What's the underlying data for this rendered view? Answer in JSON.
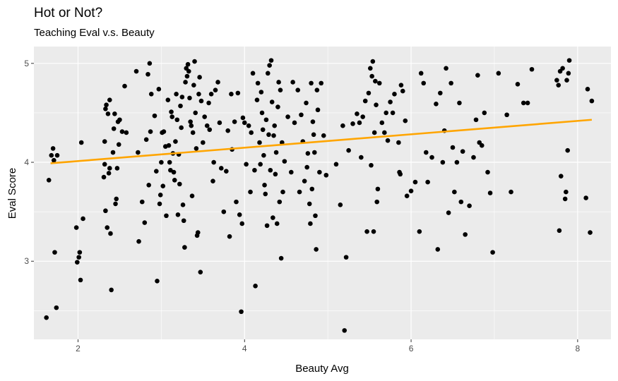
{
  "chart_data": {
    "type": "scatter",
    "title": "Hot or Not?",
    "subtitle": "Teaching Eval v.s. Beauty",
    "xlabel": "Beauty Avg",
    "ylabel": "Eval Score",
    "xlim": [
      1.47,
      8.4
    ],
    "ylim": [
      2.21,
      5.17
    ],
    "x_ticks": [
      2,
      4,
      6,
      8
    ],
    "y_ticks": [
      3,
      4,
      5
    ],
    "x_tick_labels": [
      "2",
      "4",
      "6",
      "8"
    ],
    "y_tick_labels": [
      "3",
      "4",
      "5"
    ],
    "grid": true,
    "colors": {
      "panel": "#ebebeb",
      "grid": "#ffffff",
      "points": "#000000",
      "trend": "#ffa500"
    },
    "trend_line": {
      "x": [
        1.67,
        8.17
      ],
      "y": [
        3.99,
        4.43
      ]
    },
    "points": [
      [
        1.62,
        2.43
      ],
      [
        1.65,
        3.82
      ],
      [
        1.68,
        4.07
      ],
      [
        1.7,
        4.14
      ],
      [
        1.71,
        4.02
      ],
      [
        1.72,
        3.09
      ],
      [
        1.74,
        2.53
      ],
      [
        1.75,
        4.07
      ],
      [
        1.98,
        3.34
      ],
      [
        1.99,
        2.99
      ],
      [
        2.01,
        3.04
      ],
      [
        2.02,
        3.09
      ],
      [
        2.03,
        2.81
      ],
      [
        2.04,
        4.2
      ],
      [
        2.06,
        3.43
      ],
      [
        2.31,
        3.85
      ],
      [
        2.32,
        3.98
      ],
      [
        2.32,
        4.21
      ],
      [
        2.33,
        4.54
      ],
      [
        2.33,
        3.51
      ],
      [
        2.34,
        4.58
      ],
      [
        2.35,
        3.34
      ],
      [
        2.36,
        4.49
      ],
      [
        2.37,
        3.89
      ],
      [
        2.38,
        4.63
      ],
      [
        2.38,
        3.94
      ],
      [
        2.39,
        3.28
      ],
      [
        2.4,
        2.71
      ],
      [
        2.42,
        4.1
      ],
      [
        2.43,
        4.34
      ],
      [
        2.44,
        4.49
      ],
      [
        2.45,
        3.58
      ],
      [
        2.46,
        3.63
      ],
      [
        2.47,
        3.94
      ],
      [
        2.48,
        4.41
      ],
      [
        2.49,
        4.18
      ],
      [
        2.5,
        4.43
      ],
      [
        2.53,
        4.31
      ],
      [
        2.56,
        4.77
      ],
      [
        2.58,
        4.3
      ],
      [
        2.7,
        4.92
      ],
      [
        2.72,
        4.1
      ],
      [
        2.73,
        3.2
      ],
      [
        2.77,
        3.6
      ],
      [
        2.8,
        3.39
      ],
      [
        2.82,
        4.23
      ],
      [
        2.84,
        4.89
      ],
      [
        2.85,
        3.77
      ],
      [
        2.86,
        5.0
      ],
      [
        2.87,
        4.31
      ],
      [
        2.88,
        4.69
      ],
      [
        2.92,
        4.47
      ],
      [
        2.94,
        3.91
      ],
      [
        2.95,
        2.8
      ],
      [
        2.97,
        4.74
      ],
      [
        2.98,
        3.58
      ],
      [
        2.99,
        3.67
      ],
      [
        3.0,
        4.0
      ],
      [
        3.01,
        4.3
      ],
      [
        3.02,
        3.76
      ],
      [
        3.03,
        4.31
      ],
      [
        3.05,
        4.16
      ],
      [
        3.06,
        3.46
      ],
      [
        3.08,
        4.63
      ],
      [
        3.09,
        4.17
      ],
      [
        3.1,
        4.0
      ],
      [
        3.11,
        3.92
      ],
      [
        3.12,
        4.51
      ],
      [
        3.13,
        4.46
      ],
      [
        3.14,
        4.09
      ],
      [
        3.15,
        3.9
      ],
      [
        3.16,
        3.82
      ],
      [
        3.17,
        4.21
      ],
      [
        3.18,
        4.69
      ],
      [
        3.19,
        4.43
      ],
      [
        3.2,
        3.47
      ],
      [
        3.21,
        4.08
      ],
      [
        3.22,
        3.78
      ],
      [
        3.23,
        4.57
      ],
      [
        3.24,
        4.35
      ],
      [
        3.25,
        4.66
      ],
      [
        3.26,
        3.57
      ],
      [
        3.27,
        3.41
      ],
      [
        3.28,
        3.14
      ],
      [
        3.29,
        4.81
      ],
      [
        3.3,
        4.95
      ],
      [
        3.31,
        4.87
      ],
      [
        3.32,
        4.99
      ],
      [
        3.33,
        4.92
      ],
      [
        3.34,
        4.65
      ],
      [
        3.35,
        4.41
      ],
      [
        3.36,
        4.37
      ],
      [
        3.37,
        3.66
      ],
      [
        3.38,
        4.3
      ],
      [
        3.39,
        4.78
      ],
      [
        3.4,
        5.02
      ],
      [
        3.41,
        4.5
      ],
      [
        3.42,
        4.14
      ],
      [
        3.43,
        3.26
      ],
      [
        3.44,
        3.29
      ],
      [
        3.45,
        4.69
      ],
      [
        3.46,
        4.86
      ],
      [
        3.47,
        2.89
      ],
      [
        3.48,
        4.62
      ],
      [
        3.5,
        4.2
      ],
      [
        3.52,
        4.46
      ],
      [
        3.55,
        4.37
      ],
      [
        3.57,
        4.6
      ],
      [
        3.58,
        4.33
      ],
      [
        3.6,
        4.69
      ],
      [
        3.62,
        3.81
      ],
      [
        3.63,
        4.0
      ],
      [
        3.65,
        4.73
      ],
      [
        3.68,
        4.81
      ],
      [
        3.7,
        4.4
      ],
      [
        3.72,
        3.94
      ],
      [
        3.75,
        3.5
      ],
      [
        3.78,
        3.91
      ],
      [
        3.8,
        4.32
      ],
      [
        3.82,
        3.25
      ],
      [
        3.84,
        4.69
      ],
      [
        3.85,
        4.13
      ],
      [
        3.88,
        4.41
      ],
      [
        3.9,
        3.6
      ],
      [
        3.92,
        4.7
      ],
      [
        3.94,
        3.47
      ],
      [
        3.96,
        2.49
      ],
      [
        3.97,
        3.38
      ],
      [
        3.98,
        4.45
      ],
      [
        4.0,
        4.4
      ],
      [
        4.02,
        3.98
      ],
      [
        4.05,
        4.37
      ],
      [
        4.07,
        3.7
      ],
      [
        4.08,
        4.3
      ],
      [
        4.1,
        4.9
      ],
      [
        4.12,
        3.92
      ],
      [
        4.13,
        2.75
      ],
      [
        4.15,
        4.63
      ],
      [
        4.16,
        4.8
      ],
      [
        4.18,
        4.2
      ],
      [
        4.19,
        3.98
      ],
      [
        4.2,
        4.71
      ],
      [
        4.21,
        4.5
      ],
      [
        4.22,
        4.33
      ],
      [
        4.23,
        4.07
      ],
      [
        4.24,
        3.77
      ],
      [
        4.25,
        3.68
      ],
      [
        4.26,
        4.43
      ],
      [
        4.27,
        3.36
      ],
      [
        4.28,
        4.9
      ],
      [
        4.29,
        4.28
      ],
      [
        4.3,
        4.98
      ],
      [
        4.31,
        3.92
      ],
      [
        4.32,
        5.03
      ],
      [
        4.33,
        4.61
      ],
      [
        4.34,
        3.44
      ],
      [
        4.35,
        4.27
      ],
      [
        4.36,
        4.37
      ],
      [
        4.37,
        3.88
      ],
      [
        4.38,
        4.1
      ],
      [
        4.39,
        3.38
      ],
      [
        4.4,
        4.56
      ],
      [
        4.41,
        4.81
      ],
      [
        4.42,
        3.6
      ],
      [
        4.43,
        4.73
      ],
      [
        4.44,
        3.03
      ],
      [
        4.45,
        4.2
      ],
      [
        4.46,
        3.7
      ],
      [
        4.48,
        4.01
      ],
      [
        4.52,
        4.46
      ],
      [
        4.56,
        3.9
      ],
      [
        4.58,
        4.81
      ],
      [
        4.6,
        4.4
      ],
      [
        4.64,
        4.73
      ],
      [
        4.66,
        3.7
      ],
      [
        4.68,
        4.48
      ],
      [
        4.7,
        4.21
      ],
      [
        4.72,
        3.81
      ],
      [
        4.74,
        4.6
      ],
      [
        4.75,
        3.95
      ],
      [
        4.76,
        4.09
      ],
      [
        4.78,
        3.58
      ],
      [
        4.79,
        3.38
      ],
      [
        4.8,
        4.8
      ],
      [
        4.81,
        3.73
      ],
      [
        4.82,
        4.41
      ],
      [
        4.83,
        4.28
      ],
      [
        4.84,
        4.1
      ],
      [
        4.85,
        3.46
      ],
      [
        4.86,
        3.12
      ],
      [
        4.87,
        4.73
      ],
      [
        4.88,
        4.53
      ],
      [
        4.9,
        3.9
      ],
      [
        4.92,
        4.8
      ],
      [
        4.95,
        4.27
      ],
      [
        4.98,
        3.87
      ],
      [
        5.1,
        3.98
      ],
      [
        5.15,
        3.57
      ],
      [
        5.18,
        4.37
      ],
      [
        5.2,
        2.3
      ],
      [
        5.22,
        3.04
      ],
      [
        5.25,
        4.12
      ],
      [
        5.3,
        4.39
      ],
      [
        5.35,
        4.49
      ],
      [
        5.38,
        4.4
      ],
      [
        5.4,
        4.05
      ],
      [
        5.42,
        4.46
      ],
      [
        5.45,
        4.62
      ],
      [
        5.47,
        3.3
      ],
      [
        5.49,
        4.7
      ],
      [
        5.51,
        4.95
      ],
      [
        5.52,
        3.97
      ],
      [
        5.53,
        4.87
      ],
      [
        5.54,
        5.02
      ],
      [
        5.55,
        3.3
      ],
      [
        5.56,
        4.3
      ],
      [
        5.57,
        4.82
      ],
      [
        5.58,
        4.58
      ],
      [
        5.59,
        3.6
      ],
      [
        5.6,
        3.73
      ],
      [
        5.62,
        4.8
      ],
      [
        5.65,
        4.4
      ],
      [
        5.68,
        4.3
      ],
      [
        5.7,
        4.5
      ],
      [
        5.72,
        4.22
      ],
      [
        5.75,
        4.61
      ],
      [
        5.78,
        4.5
      ],
      [
        5.8,
        4.69
      ],
      [
        5.85,
        4.2
      ],
      [
        5.86,
        3.9
      ],
      [
        5.87,
        3.88
      ],
      [
        5.88,
        4.78
      ],
      [
        5.9,
        4.72
      ],
      [
        5.93,
        4.42
      ],
      [
        5.95,
        3.66
      ],
      [
        6.0,
        3.71
      ],
      [
        6.05,
        3.8
      ],
      [
        6.1,
        3.3
      ],
      [
        6.12,
        4.9
      ],
      [
        6.15,
        4.8
      ],
      [
        6.18,
        4.1
      ],
      [
        6.2,
        3.8
      ],
      [
        6.25,
        4.05
      ],
      [
        6.3,
        4.59
      ],
      [
        6.32,
        3.12
      ],
      [
        6.35,
        4.7
      ],
      [
        6.38,
        4.0
      ],
      [
        6.4,
        4.32
      ],
      [
        6.42,
        4.95
      ],
      [
        6.45,
        3.49
      ],
      [
        6.48,
        4.8
      ],
      [
        6.5,
        4.15
      ],
      [
        6.52,
        3.7
      ],
      [
        6.55,
        4.0
      ],
      [
        6.58,
        4.6
      ],
      [
        6.6,
        3.6
      ],
      [
        6.62,
        4.11
      ],
      [
        6.65,
        3.27
      ],
      [
        6.7,
        3.56
      ],
      [
        6.75,
        4.05
      ],
      [
        6.78,
        4.43
      ],
      [
        6.8,
        4.88
      ],
      [
        6.82,
        4.2
      ],
      [
        6.85,
        4.17
      ],
      [
        6.88,
        4.5
      ],
      [
        6.92,
        3.9
      ],
      [
        6.95,
        3.69
      ],
      [
        6.98,
        3.09
      ],
      [
        7.05,
        4.9
      ],
      [
        7.15,
        4.48
      ],
      [
        7.2,
        3.7
      ],
      [
        7.28,
        4.79
      ],
      [
        7.35,
        4.6
      ],
      [
        7.4,
        4.6
      ],
      [
        7.45,
        4.94
      ],
      [
        7.75,
        4.83
      ],
      [
        7.77,
        4.78
      ],
      [
        7.78,
        3.31
      ],
      [
        7.79,
        4.92
      ],
      [
        7.8,
        3.86
      ],
      [
        7.82,
        4.95
      ],
      [
        7.85,
        3.63
      ],
      [
        7.86,
        3.7
      ],
      [
        7.87,
        4.83
      ],
      [
        7.88,
        4.12
      ],
      [
        7.89,
        4.9
      ],
      [
        7.9,
        5.03
      ],
      [
        8.1,
        3.64
      ],
      [
        8.12,
        4.74
      ],
      [
        8.15,
        3.29
      ],
      [
        8.17,
        4.62
      ]
    ]
  }
}
